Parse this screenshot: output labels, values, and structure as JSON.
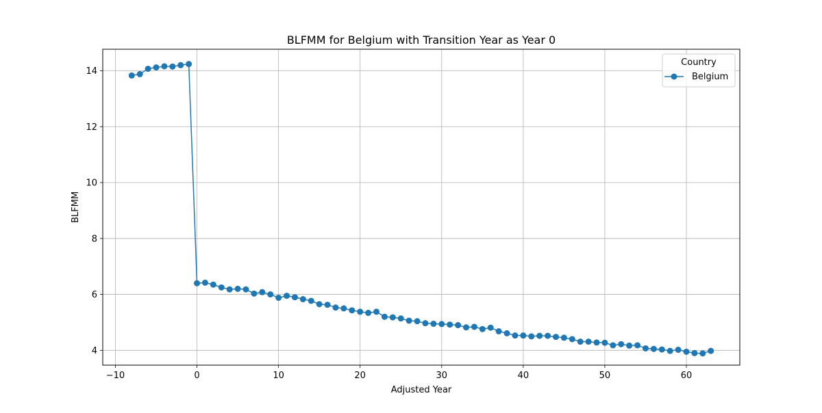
{
  "chart_data": {
    "type": "line",
    "title": "BLFMM for Belgium with Transition Year as Year 0",
    "xlabel": "Adjusted Year",
    "ylabel": "BLFMM",
    "xlim": [
      -11.55,
      66.55
    ],
    "ylim": [
      3.47,
      14.77
    ],
    "xticks": [
      -10,
      0,
      10,
      20,
      30,
      40,
      50,
      60
    ],
    "yticks": [
      4,
      6,
      8,
      10,
      12,
      14
    ],
    "xtick_labels": [
      "−10",
      "0",
      "10",
      "20",
      "30",
      "40",
      "50",
      "60"
    ],
    "ytick_labels": [
      "4",
      "6",
      "8",
      "10",
      "12",
      "14"
    ],
    "grid": true,
    "legend": {
      "title": "Country",
      "placement": "top-right"
    },
    "series": [
      {
        "name": "Belgium",
        "color": "#1f77b4",
        "marker": "circle",
        "x": [
          -8,
          -7,
          -6,
          -5,
          -4,
          -3,
          -2,
          -1,
          0,
          1,
          2,
          3,
          4,
          5,
          6,
          7,
          8,
          9,
          10,
          11,
          12,
          13,
          14,
          15,
          16,
          17,
          18,
          19,
          20,
          21,
          22,
          23,
          24,
          25,
          26,
          27,
          28,
          29,
          30,
          31,
          32,
          33,
          34,
          35,
          36,
          37,
          38,
          39,
          40,
          41,
          42,
          43,
          44,
          45,
          46,
          47,
          48,
          49,
          50,
          51,
          52,
          53,
          54,
          55,
          56,
          57,
          58,
          59,
          60,
          61,
          62,
          63
        ],
        "y": [
          13.83,
          13.88,
          14.07,
          14.12,
          14.16,
          14.15,
          14.2,
          14.24,
          6.4,
          6.42,
          6.35,
          6.25,
          6.18,
          6.2,
          6.18,
          6.03,
          6.08,
          6.0,
          5.88,
          5.95,
          5.9,
          5.83,
          5.77,
          5.65,
          5.63,
          5.53,
          5.5,
          5.43,
          5.38,
          5.34,
          5.38,
          5.2,
          5.18,
          5.14,
          5.06,
          5.04,
          4.97,
          4.95,
          4.94,
          4.92,
          4.9,
          4.82,
          4.84,
          4.76,
          4.81,
          4.68,
          4.61,
          4.53,
          4.53,
          4.5,
          4.52,
          4.52,
          4.48,
          4.45,
          4.4,
          4.31,
          4.31,
          4.28,
          4.27,
          4.18,
          4.22,
          4.17,
          4.18,
          4.07,
          4.05,
          4.03,
          3.98,
          4.02,
          3.95,
          3.9,
          3.89,
          3.98
        ]
      }
    ]
  }
}
